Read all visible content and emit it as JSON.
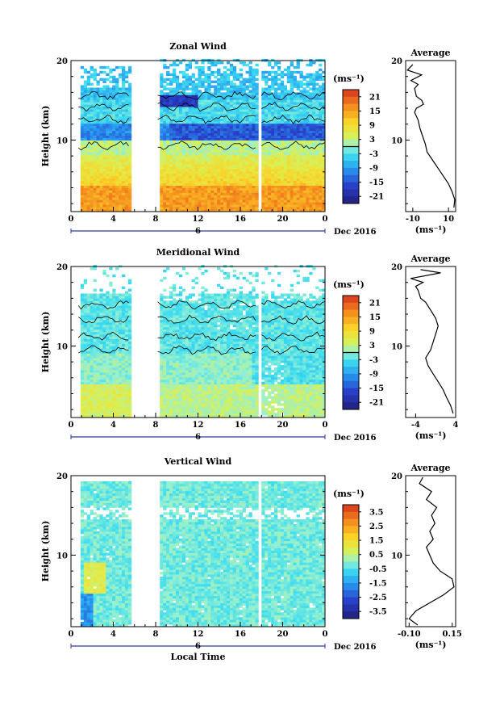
{
  "chart_data": [
    {
      "type": "heatmap",
      "title": "Zonal Wind",
      "ylabel": "Height (km)",
      "xlabel": "",
      "xlim": [
        0,
        24
      ],
      "ylim": [
        1,
        20
      ],
      "x_ticks": [
        "0",
        "4",
        "8",
        "12",
        "16",
        "20",
        "0"
      ],
      "y_ticks": [
        "10",
        "20"
      ],
      "date_label": "6",
      "month_label": "Dec 2016",
      "colorbar": {
        "unit": "(ms⁻¹)",
        "ticks": [
          "21",
          "15",
          "9",
          "3",
          "-3",
          "-9",
          "-15",
          "-21"
        ],
        "range": [
          -24,
          24
        ]
      },
      "data_gaps_hours": [
        [
          0,
          0.7
        ],
        [
          5.6,
          8.2
        ],
        [
          17.5,
          18.0
        ]
      ],
      "profile": {
        "title": "Average",
        "xlabel": "(ms⁻¹)",
        "x_ticks": [
          "-10",
          "10"
        ],
        "xlim": [
          -14,
          14
        ],
        "points": [
          [
            13,
            1.5
          ],
          [
            13.5,
            2.5
          ],
          [
            12,
            3.5
          ],
          [
            10,
            4.5
          ],
          [
            7,
            5.5
          ],
          [
            4,
            6.5
          ],
          [
            1,
            7.5
          ],
          [
            -2,
            8.5
          ],
          [
            -3,
            9.5
          ],
          [
            -4.5,
            10.5
          ],
          [
            -6,
            11.5
          ],
          [
            -7,
            12.5
          ],
          [
            -9,
            13.5
          ],
          [
            -8,
            14
          ],
          [
            -4,
            14.5
          ],
          [
            -5,
            15
          ],
          [
            -8,
            15.5
          ],
          [
            -9,
            16.5
          ],
          [
            -7,
            17
          ],
          [
            -11,
            17.5
          ],
          [
            -5,
            18.2
          ],
          [
            -13,
            18.8
          ],
          [
            -10,
            19.5
          ]
        ]
      }
    },
    {
      "type": "heatmap",
      "title": "Meridional Wind",
      "ylabel": "Height (km)",
      "xlabel": "",
      "xlim": [
        0,
        24
      ],
      "ylim": [
        1,
        20
      ],
      "x_ticks": [
        "0",
        "4",
        "8",
        "12",
        "16",
        "20",
        "0"
      ],
      "y_ticks": [
        "10",
        "20"
      ],
      "date_label": "6",
      "month_label": "Dec 2016",
      "colorbar": {
        "unit": "(ms⁻¹)",
        "ticks": [
          "21",
          "15",
          "9",
          "3",
          "-3",
          "-9",
          "-15",
          "-21"
        ],
        "range": [
          -24,
          24
        ]
      },
      "data_gaps_hours": [
        [
          0,
          0.7
        ],
        [
          5.6,
          8.2
        ],
        [
          17.5,
          18.0
        ]
      ],
      "profile": {
        "title": "Average",
        "xlabel": "(ms⁻¹)",
        "x_ticks": [
          "-4",
          "4"
        ],
        "xlim": [
          -6,
          4
        ],
        "points": [
          [
            3.5,
            1.5
          ],
          [
            3,
            2.5
          ],
          [
            2.2,
            3.5
          ],
          [
            1.5,
            4.5
          ],
          [
            0.5,
            5.5
          ],
          [
            -0.5,
            6.5
          ],
          [
            -1.5,
            7.5
          ],
          [
            -2,
            8.5
          ],
          [
            -1,
            9.5
          ],
          [
            -0.5,
            10.5
          ],
          [
            0,
            11.5
          ],
          [
            0.5,
            12.5
          ],
          [
            0,
            13.5
          ],
          [
            -1,
            14.5
          ],
          [
            -2,
            15.5
          ],
          [
            -3,
            16
          ],
          [
            -3.5,
            17
          ],
          [
            -4,
            17.5
          ],
          [
            -2.5,
            18
          ],
          [
            -5,
            18.5
          ],
          [
            1,
            19.2
          ],
          [
            -3,
            19.6
          ]
        ]
      }
    },
    {
      "type": "heatmap",
      "title": "Vertical Wind",
      "ylabel": "Height (km)",
      "xlabel": "Local Time",
      "xlim": [
        0,
        24
      ],
      "ylim": [
        1,
        20
      ],
      "x_ticks": [
        "0",
        "4",
        "8",
        "12",
        "16",
        "20",
        "0"
      ],
      "y_ticks": [
        "10",
        "20"
      ],
      "date_label": "6",
      "month_label": "Dec 2016",
      "colorbar": {
        "unit": "(ms⁻¹)",
        "ticks": [
          "3.5",
          "2.5",
          "1.5",
          "0.5",
          "-0.5",
          "-1.5",
          "-2.5",
          "-3.5"
        ],
        "range": [
          -4,
          4
        ]
      },
      "data_gaps_hours": [
        [
          0,
          0.7
        ],
        [
          5.6,
          8.2
        ],
        [
          17.5,
          18.0
        ]
      ],
      "profile": {
        "title": "Average",
        "xlabel": "(ms⁻¹)",
        "x_ticks": [
          "-0.10",
          "0.15"
        ],
        "xlim": [
          -0.12,
          0.17
        ],
        "points": [
          [
            -0.05,
            1.2
          ],
          [
            -0.1,
            2
          ],
          [
            -0.06,
            3
          ],
          [
            0.02,
            4
          ],
          [
            0.1,
            5
          ],
          [
            0.16,
            6
          ],
          [
            0.15,
            7
          ],
          [
            0.08,
            8
          ],
          [
            0.04,
            9
          ],
          [
            0.02,
            10
          ],
          [
            0.0,
            11
          ],
          [
            0.04,
            12
          ],
          [
            0.02,
            13
          ],
          [
            0.05,
            14
          ],
          [
            0.03,
            15
          ],
          [
            0.06,
            16
          ],
          [
            0.0,
            17
          ],
          [
            0.03,
            18
          ],
          [
            -0.04,
            19
          ],
          [
            -0.02,
            19.8
          ]
        ]
      }
    }
  ]
}
